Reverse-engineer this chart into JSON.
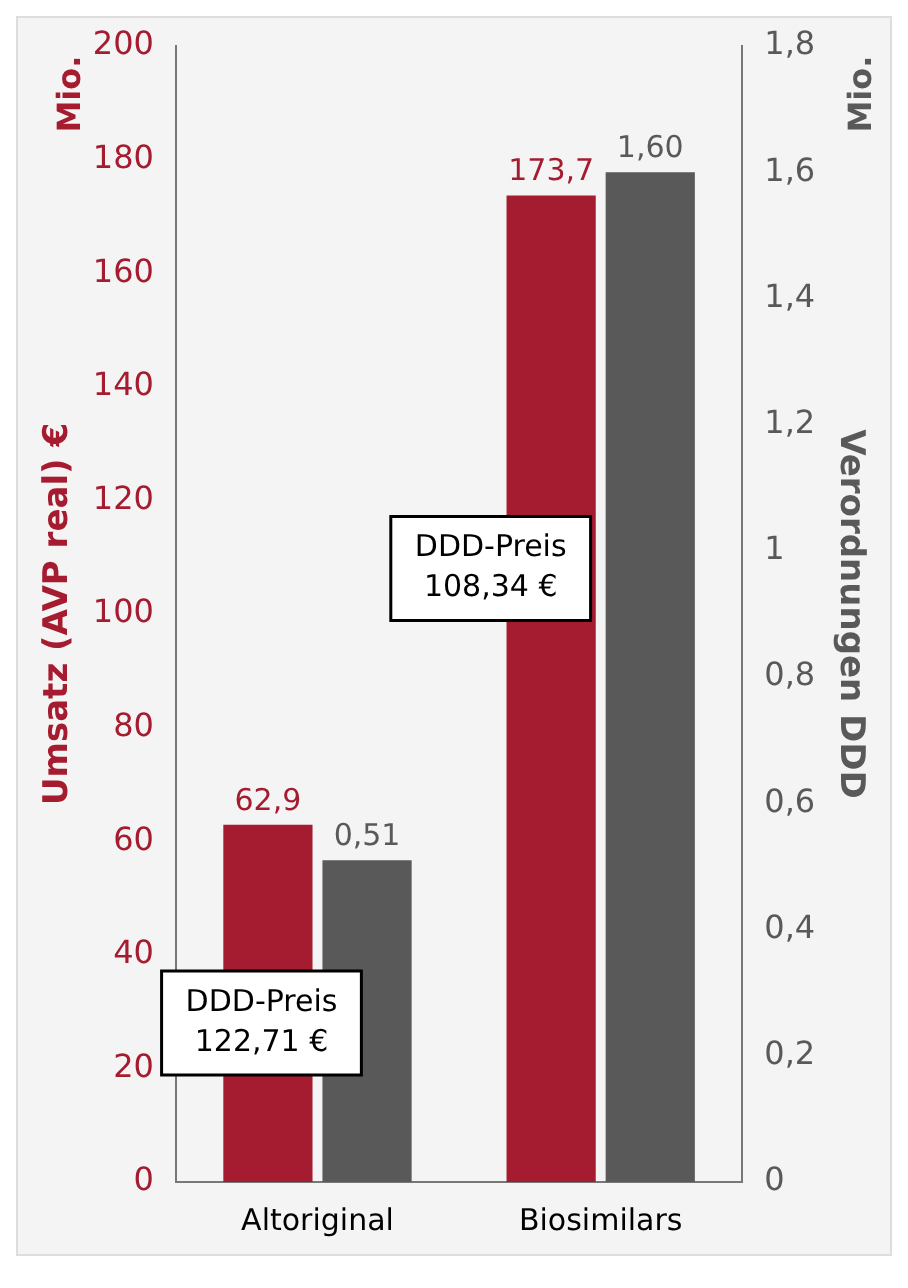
{
  "chart_data": {
    "type": "bar",
    "categories": [
      "Altoriginal",
      "Biosimilars"
    ],
    "ylabel": "Umsatz (AVP real) €",
    "y2label": "Verordnungen DDD",
    "series": [
      {
        "color": "#a51c30",
        "values": [
          62.9,
          173.7
        ],
        "value_labels": [
          "62,9",
          "173,7"
        ]
      },
      {
        "color": "#595959",
        "axis": "y2",
        "values": [
          0.51,
          1.6
        ],
        "value_labels": [
          "0,51",
          "1,60"
        ]
      }
    ],
    "ylim": [
      0,
      200
    ],
    "yticks": [
      0,
      20,
      40,
      60,
      80,
      100,
      120,
      140,
      160,
      180,
      200
    ],
    "y2lim": [
      0,
      1.8
    ],
    "y2ticks": [
      0,
      {
        "value": 0.2,
        "label": "0,2"
      },
      {
        "value": 0.4,
        "label": "0,4"
      },
      {
        "value": 0.6,
        "label": "0,6"
      },
      {
        "value": 0.8,
        "label": "0,8"
      },
      1,
      {
        "value": 1.2,
        "label": "1,2"
      },
      {
        "value": 1.4,
        "label": "1,4"
      },
      {
        "value": 1.6,
        "label": "1,6"
      },
      {
        "value": 1.8,
        "label": "1,8"
      }
    ],
    "annotations": [
      "Mio.",
      "Mio.",
      "DDD-Preis\n122,71 €",
      "DDD-Preis\n108,34 €"
    ],
    "grid": false,
    "legend": false
  }
}
